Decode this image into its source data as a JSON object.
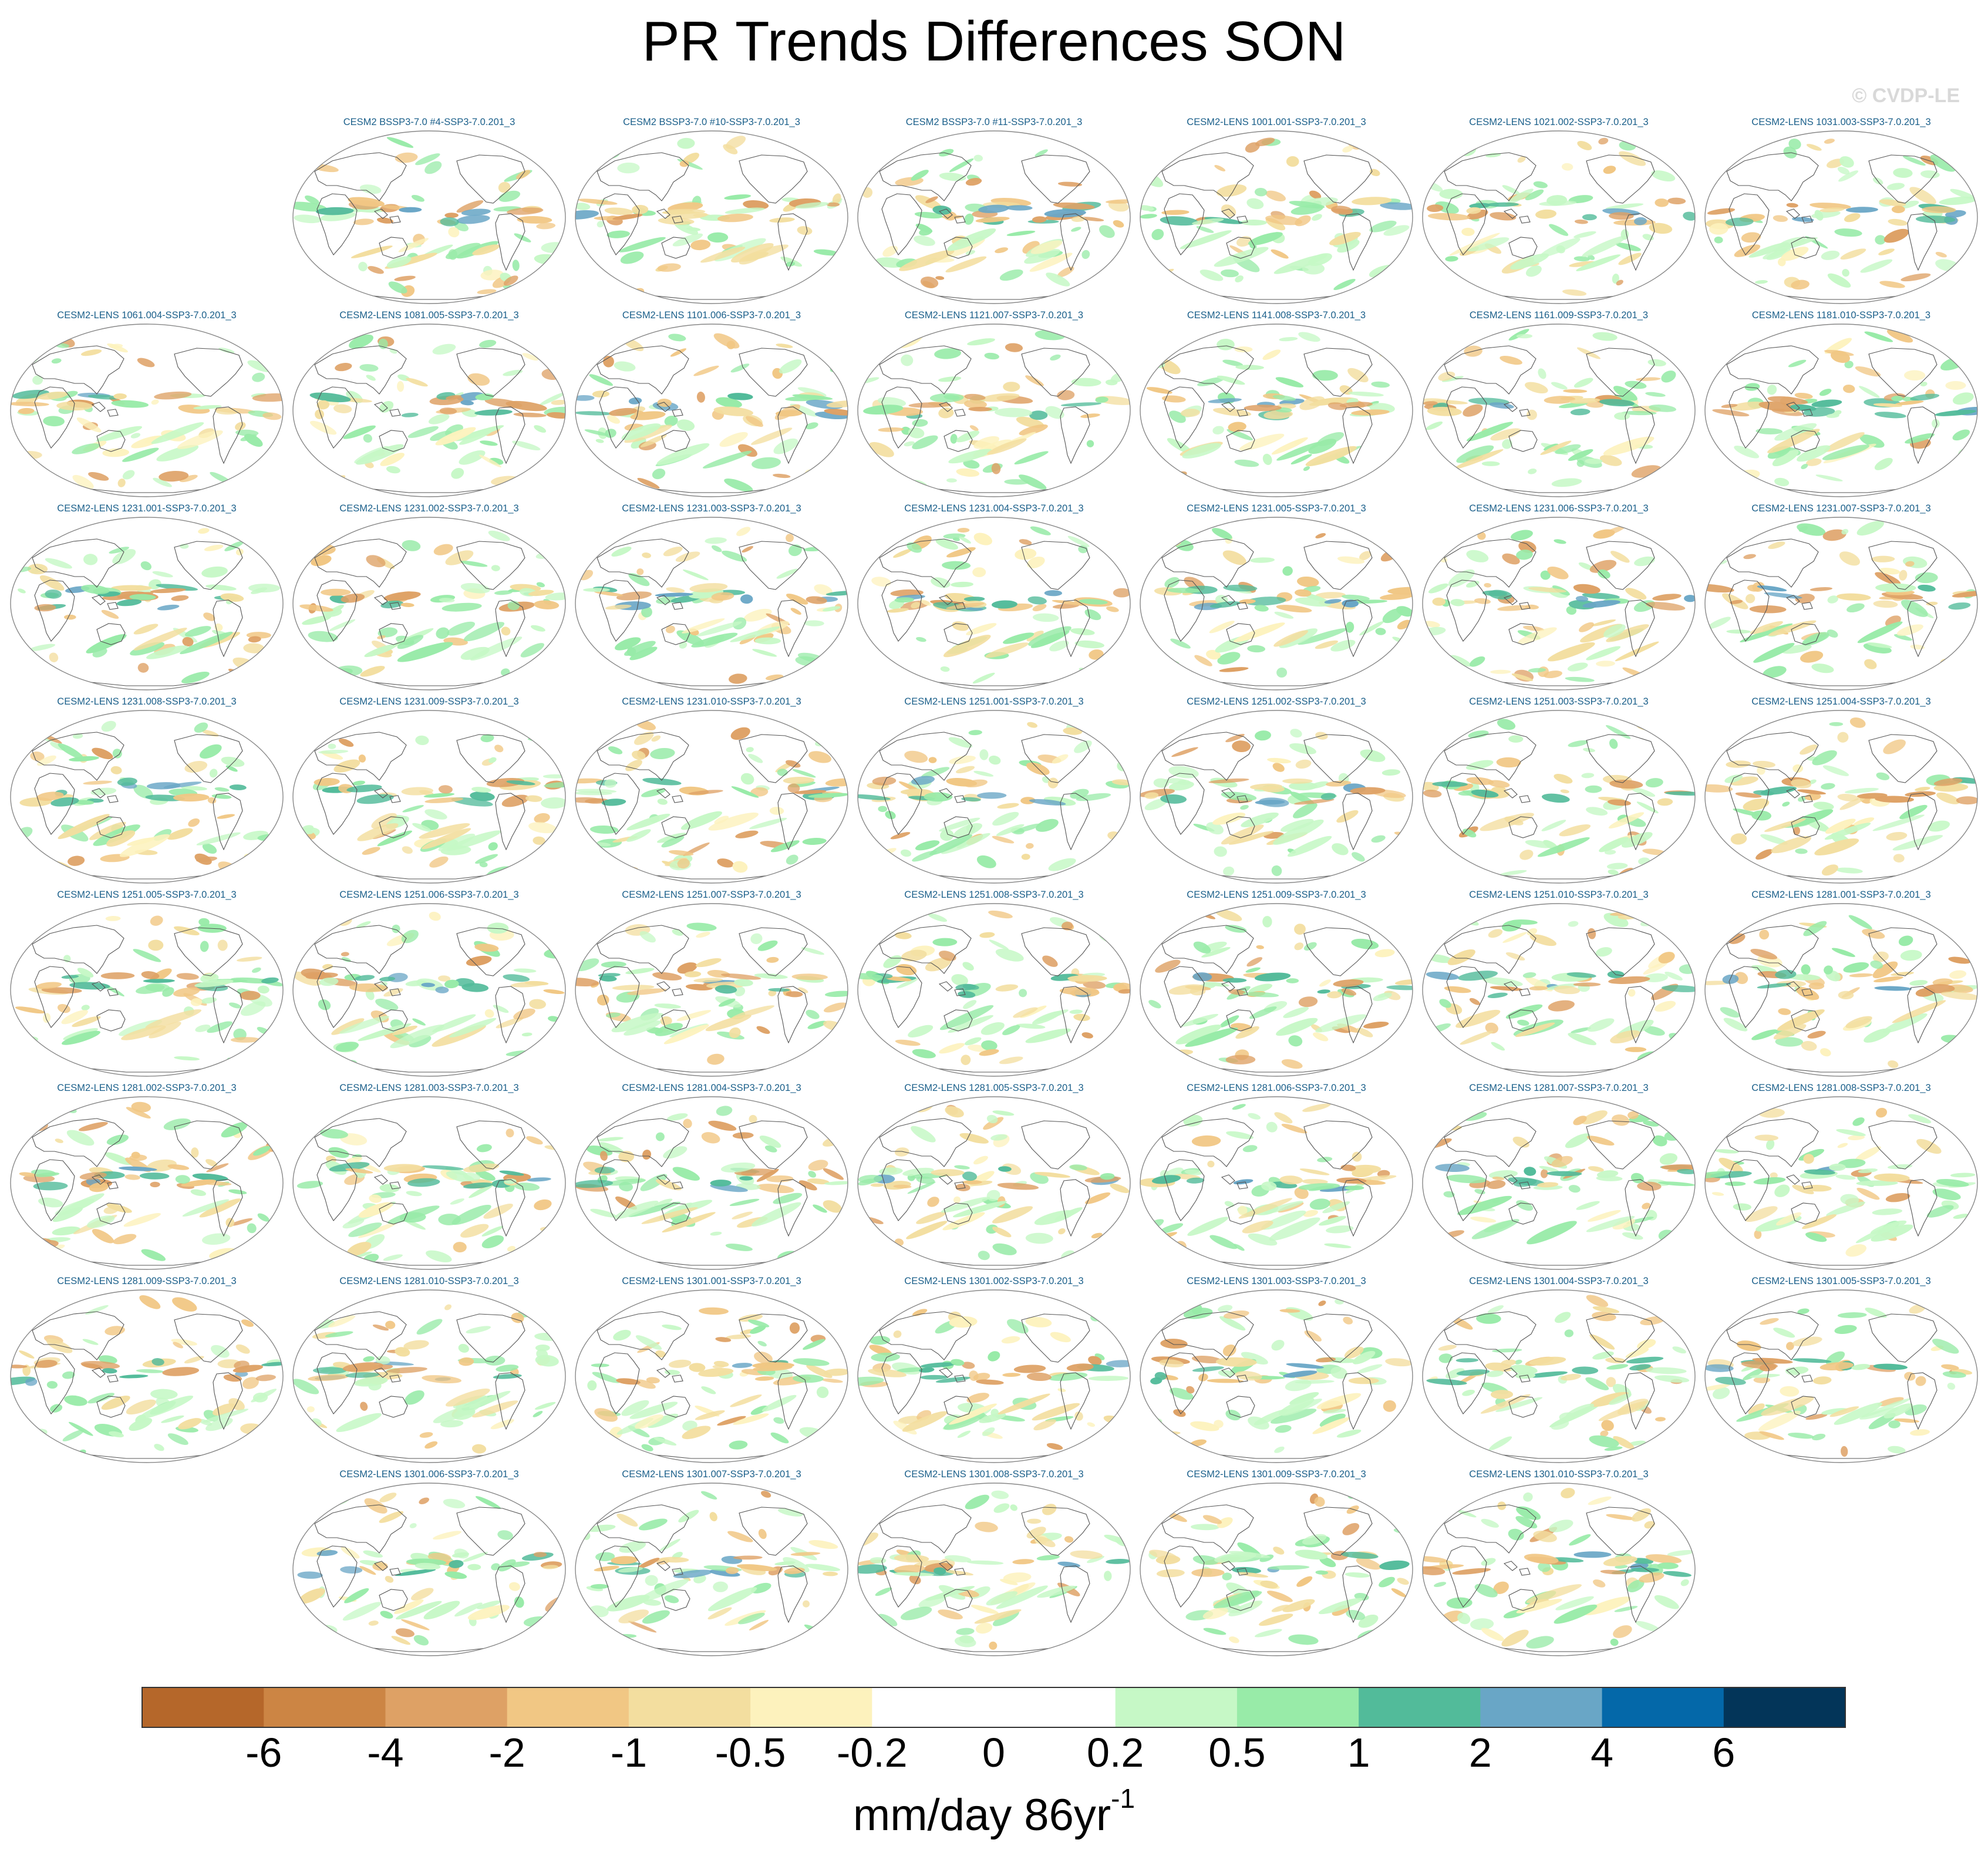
{
  "title": "PR Trends Differences SON",
  "watermark": "© CVDP-LE",
  "units_main": "mm/day 86yr",
  "units_sup": "-1",
  "colors": {
    "panel_title": "#1a5f8a",
    "coast": "#555555"
  },
  "colorbar": {
    "colors": [
      "#b5672a",
      "#cc8544",
      "#dea165",
      "#f1c784",
      "#f3de9f",
      "#fdf2bd",
      "#ffffff",
      "#ffffff",
      "#c6f8c6",
      "#98eba8",
      "#52bb9a",
      "#69a6c6",
      "#0468a9",
      "#033559"
    ],
    "labels": [
      "-6",
      "-4",
      "-2",
      "-1",
      "-0.5",
      "-0.2",
      "0",
      "0.2",
      "0.5",
      "1",
      "2",
      "4",
      "6"
    ]
  },
  "panels": [
    "CESM2 BSSP3-7.0 #4-SSP3-7.0.201_3",
    "CESM2 BSSP3-7.0 #10-SSP3-7.0.201_3",
    "CESM2 BSSP3-7.0 #11-SSP3-7.0.201_3",
    "CESM2-LENS 1001.001-SSP3-7.0.201_3",
    "CESM2-LENS 1021.002-SSP3-7.0.201_3",
    "CESM2-LENS 1031.003-SSP3-7.0.201_3",
    "CESM2-LENS 1061.004-SSP3-7.0.201_3",
    "CESM2-LENS 1081.005-SSP3-7.0.201_3",
    "CESM2-LENS 1101.006-SSP3-7.0.201_3",
    "CESM2-LENS 1121.007-SSP3-7.0.201_3",
    "CESM2-LENS 1141.008-SSP3-7.0.201_3",
    "CESM2-LENS 1161.009-SSP3-7.0.201_3",
    "CESM2-LENS 1181.010-SSP3-7.0.201_3",
    "CESM2-LENS 1231.001-SSP3-7.0.201_3",
    "CESM2-LENS 1231.002-SSP3-7.0.201_3",
    "CESM2-LENS 1231.003-SSP3-7.0.201_3",
    "CESM2-LENS 1231.004-SSP3-7.0.201_3",
    "CESM2-LENS 1231.005-SSP3-7.0.201_3",
    "CESM2-LENS 1231.006-SSP3-7.0.201_3",
    "CESM2-LENS 1231.007-SSP3-7.0.201_3",
    "CESM2-LENS 1231.008-SSP3-7.0.201_3",
    "CESM2-LENS 1231.009-SSP3-7.0.201_3",
    "CESM2-LENS 1231.010-SSP3-7.0.201_3",
    "CESM2-LENS 1251.001-SSP3-7.0.201_3",
    "CESM2-LENS 1251.002-SSP3-7.0.201_3",
    "CESM2-LENS 1251.003-SSP3-7.0.201_3",
    "CESM2-LENS 1251.004-SSP3-7.0.201_3",
    "CESM2-LENS 1251.005-SSP3-7.0.201_3",
    "CESM2-LENS 1251.006-SSP3-7.0.201_3",
    "CESM2-LENS 1251.007-SSP3-7.0.201_3",
    "CESM2-LENS 1251.008-SSP3-7.0.201_3",
    "CESM2-LENS 1251.009-SSP3-7.0.201_3",
    "CESM2-LENS 1251.010-SSP3-7.0.201_3",
    "CESM2-LENS 1281.001-SSP3-7.0.201_3",
    "CESM2-LENS 1281.002-SSP3-7.0.201_3",
    "CESM2-LENS 1281.003-SSP3-7.0.201_3",
    "CESM2-LENS 1281.004-SSP3-7.0.201_3",
    "CESM2-LENS 1281.005-SSP3-7.0.201_3",
    "CESM2-LENS 1281.006-SSP3-7.0.201_3",
    "CESM2-LENS 1281.007-SSP3-7.0.201_3",
    "CESM2-LENS 1281.008-SSP3-7.0.201_3",
    "CESM2-LENS 1281.009-SSP3-7.0.201_3",
    "CESM2-LENS 1281.010-SSP3-7.0.201_3",
    "CESM2-LENS 1301.001-SSP3-7.0.201_3",
    "CESM2-LENS 1301.002-SSP3-7.0.201_3",
    "CESM2-LENS 1301.003-SSP3-7.0.201_3",
    "CESM2-LENS 1301.004-SSP3-7.0.201_3",
    "CESM2-LENS 1301.005-SSP3-7.0.201_3",
    "CESM2-LENS 1301.006-SSP3-7.0.201_3",
    "CESM2-LENS 1301.007-SSP3-7.0.201_3",
    "CESM2-LENS 1301.008-SSP3-7.0.201_3",
    "CESM2-LENS 1301.009-SSP3-7.0.201_3",
    "CESM2-LENS 1301.010-SSP3-7.0.201_3"
  ]
}
